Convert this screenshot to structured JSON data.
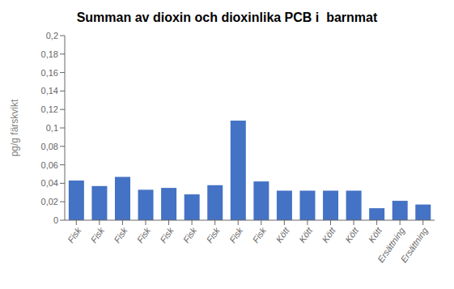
{
  "chart_data": {
    "type": "bar",
    "title": "Summan av dioxin och dioxinlika PCB i  barnmat",
    "ylabel": "pg/g färskvikt",
    "categories": [
      "Fisk",
      "Fisk",
      "Fisk",
      "Fisk",
      "Fisk",
      "Fisk",
      "Fisk",
      "Fisk",
      "Fisk",
      "Kött",
      "Kött",
      "Kött",
      "Kött",
      "Kött",
      "Ersättning",
      "Ersättning"
    ],
    "values": [
      0.043,
      0.037,
      0.047,
      0.033,
      0.035,
      0.028,
      0.038,
      0.108,
      0.042,
      0.032,
      0.032,
      0.032,
      0.032,
      0.013,
      0.021,
      0.017
    ],
    "color": "#4472C4",
    "ylim": [
      0,
      0.2
    ],
    "yticks": [
      0,
      {
        "value": 0.02,
        "label": "0,02"
      },
      {
        "value": 0.04,
        "label": "0,04"
      },
      {
        "value": 0.06,
        "label": "0,06"
      },
      {
        "value": 0.08,
        "label": "0,08"
      },
      {
        "value": 0.1,
        "label": "0,1"
      },
      {
        "value": 0.12,
        "label": "0,12"
      },
      {
        "value": 0.14,
        "label": "0,14"
      },
      {
        "value": 0.16,
        "label": "0,16"
      },
      {
        "value": 0.18,
        "label": "0,18"
      },
      {
        "value": 0.2,
        "label": "0,2"
      }
    ],
    "grid": false
  }
}
